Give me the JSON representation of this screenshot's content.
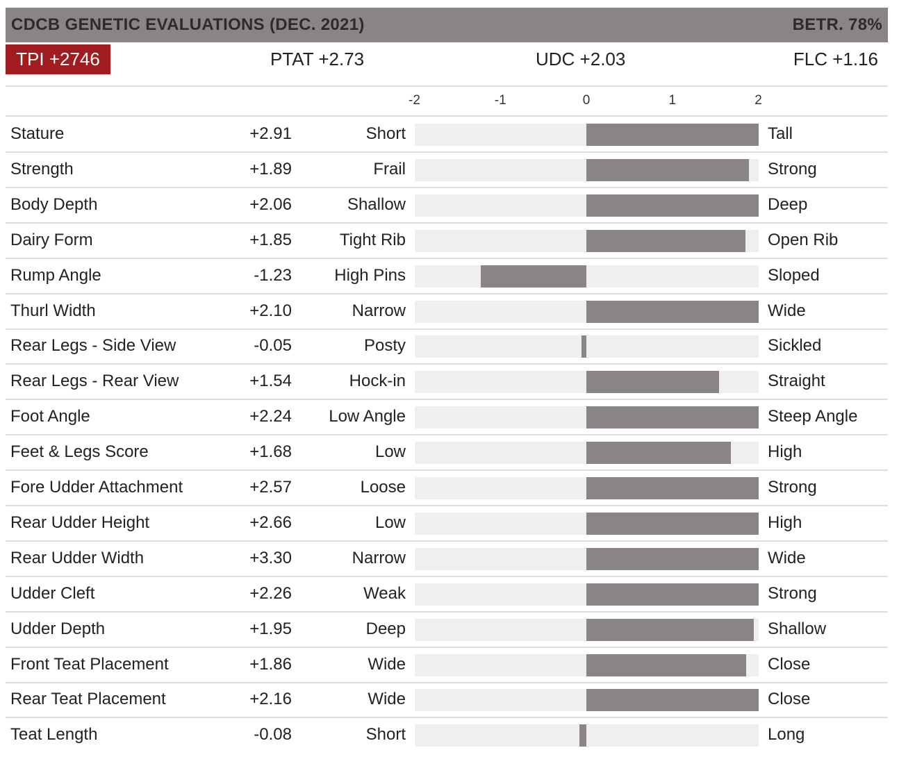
{
  "header": {
    "title": "CDCB GENETIC EVALUATIONS (DEC. 2021)",
    "reliability": "BETR. 78%"
  },
  "indexes": {
    "tpi": "TPI +2746",
    "ptat": "PTAT +2.73",
    "udc": "UDC +2.03",
    "flc": "FLC +1.16"
  },
  "colors": {
    "header_bg": "#8a8485",
    "tpi_bg": "#a11c1f",
    "bar": "#8a8485",
    "track": "#efefef"
  },
  "chart_data": {
    "type": "bar",
    "orientation": "horizontal",
    "xlim": [
      -2,
      2
    ],
    "ticks": [
      "-2",
      "-1",
      "0",
      "1",
      "2"
    ],
    "categories": [
      "Stature",
      "Strength",
      "Body Depth",
      "Dairy Form",
      "Rump Angle",
      "Thurl Width",
      "Rear Legs - Side View",
      "Rear Legs - Rear View",
      "Foot Angle",
      "Feet & Legs Score",
      "Fore Udder Attachment",
      "Rear Udder Height",
      "Rear Udder Width",
      "Udder Cleft",
      "Udder Depth",
      "Front Teat Placement",
      "Rear Teat Placement",
      "Teat Length"
    ],
    "values": [
      2.91,
      1.89,
      2.06,
      1.85,
      -1.23,
      2.1,
      -0.05,
      1.54,
      2.24,
      1.68,
      2.57,
      2.66,
      3.3,
      2.26,
      1.95,
      1.86,
      2.16,
      -0.08
    ],
    "value_labels": [
      "+2.91",
      "+1.89",
      "+2.06",
      "+1.85",
      "-1.23",
      "+2.10",
      "-0.05",
      "+1.54",
      "+2.24",
      "+1.68",
      "+2.57",
      "+2.66",
      "+3.30",
      "+2.26",
      "+1.95",
      "+1.86",
      "+2.16",
      "-0.08"
    ],
    "low_labels": [
      "Short",
      "Frail",
      "Shallow",
      "Tight Rib",
      "High Pins",
      "Narrow",
      "Posty",
      "Hock-in",
      "Low Angle",
      "Low",
      "Loose",
      "Low",
      "Narrow",
      "Weak",
      "Deep",
      "Wide",
      "Wide",
      "Short"
    ],
    "high_labels": [
      "Tall",
      "Strong",
      "Deep",
      "Open Rib",
      "Sloped",
      "Wide",
      "Sickled",
      "Straight",
      "Steep Angle",
      "High",
      "Strong",
      "High",
      "Wide",
      "Strong",
      "Shallow",
      "Close",
      "Close",
      "Long"
    ]
  }
}
